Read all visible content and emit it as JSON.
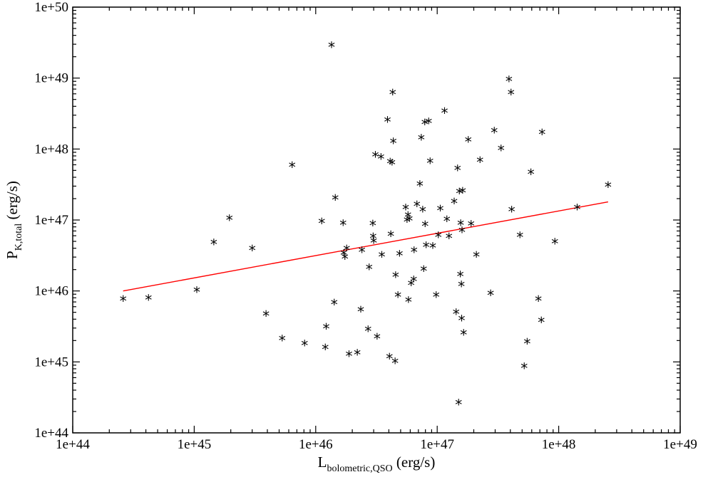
{
  "chart_data": {
    "type": "scatter",
    "title": "",
    "xlabel": {
      "main": "L",
      "sub": "bolometric,QSO",
      "unit": " (erg/s)"
    },
    "ylabel": {
      "main": "P",
      "sub": "K,total",
      "unit": " (erg/s)"
    },
    "xscale": "log",
    "yscale": "log",
    "xlim": [
      1e+44,
      1e+49
    ],
    "ylim": [
      1e+44,
      1e+50
    ],
    "xtick_labels": [
      "1e+44",
      "1e+45",
      "1e+46",
      "1e+47",
      "1e+48",
      "1e+49"
    ],
    "ytick_labels": [
      "1e+44",
      "1e+45",
      "1e+46",
      "1e+47",
      "1e+48",
      "1e+49",
      "1e+50"
    ],
    "grid": false,
    "marker": "*",
    "marker_color": "#000000",
    "fit_line_color": "#ff0000",
    "points": [
      [
        2.6e+44,
        7.2e+45
      ],
      [
        4.2e+44,
        7.4e+45
      ],
      [
        1.05e+45,
        9.6e+45
      ],
      [
        1.45e+45,
        4.5e+46
      ],
      [
        1.95e+45,
        9.9e+46
      ],
      [
        3e+45,
        3.7e+46
      ],
      [
        3.9e+45,
        4.4e+45
      ],
      [
        5.3e+45,
        2e+45
      ],
      [
        6.4e+45,
        5.5e+47
      ],
      [
        8.1e+45,
        1.7e+45
      ],
      [
        1.12e+46,
        8.9e+46
      ],
      [
        1.2e+46,
        1.5e+45
      ],
      [
        1.22e+46,
        2.9e+45
      ],
      [
        1.35e+46,
        2.7e+49
      ],
      [
        1.42e+46,
        6.4e+45
      ],
      [
        1.45e+46,
        1.9e+47
      ],
      [
        1.68e+46,
        8.4e+46
      ],
      [
        1.7e+46,
        3.2e+46
      ],
      [
        1.74e+46,
        2.8e+46
      ],
      [
        1.8e+46,
        3.7e+46
      ],
      [
        1.88e+46,
        1.2e+45
      ],
      [
        2.2e+46,
        1.25e+45
      ],
      [
        2.35e+46,
        5.1e+45
      ],
      [
        2.4e+46,
        3.5e+46
      ],
      [
        2.7e+46,
        2.7e+45
      ],
      [
        2.75e+46,
        2e+46
      ],
      [
        2.95e+46,
        8.3e+46
      ],
      [
        2.97e+46,
        5.5e+46
      ],
      [
        3e+46,
        4.7e+46
      ],
      [
        3.1e+46,
        7.7e+47
      ],
      [
        3.2e+46,
        2.1e+45
      ],
      [
        3.45e+46,
        7.2e+47
      ],
      [
        3.5e+46,
        3e+46
      ],
      [
        3.9e+46,
        2.4e+48
      ],
      [
        4.05e+46,
        1.1e+45
      ],
      [
        4.1e+46,
        6.2e+47
      ],
      [
        4.15e+46,
        5.9e+46
      ],
      [
        4.25e+46,
        6e+47
      ],
      [
        4.3e+46,
        5.8e+48
      ],
      [
        4.35e+46,
        1.2e+48
      ],
      [
        4.5e+46,
        9.5e+44
      ],
      [
        4.55e+46,
        1.55e+46
      ],
      [
        4.75e+46,
        8.2e+45
      ],
      [
        4.9e+46,
        3.1e+46
      ],
      [
        5.5e+46,
        1.4e+47
      ],
      [
        5.65e+46,
        9.3e+46
      ],
      [
        5.75e+46,
        1.1e+47
      ],
      [
        5.8e+46,
        6.9e+45
      ],
      [
        5.9e+46,
        9.7e+46
      ],
      [
        6.1e+46,
        1.2e+46
      ],
      [
        6.4e+46,
        1.35e+46
      ],
      [
        6.45e+46,
        3.5e+46
      ],
      [
        6.8e+46,
        1.55e+47
      ],
      [
        7.2e+46,
        3e+47
      ],
      [
        7.4e+46,
        1.35e+48
      ],
      [
        7.6e+46,
        1.3e+47
      ],
      [
        7.75e+46,
        1.9e+46
      ],
      [
        7.9e+46,
        2.2e+48
      ],
      [
        7.95e+46,
        8.1e+46
      ],
      [
        8.1e+46,
        4.1e+46
      ],
      [
        8.5e+46,
        2.3e+48
      ],
      [
        8.75e+46,
        6.3e+47
      ],
      [
        9.2e+46,
        4e+46
      ],
      [
        9.8e+46,
        8.2e+45
      ],
      [
        1.02e+47,
        5.7e+46
      ],
      [
        1.06e+47,
        1.35e+47
      ],
      [
        1.15e+47,
        3.2e+48
      ],
      [
        1.2e+47,
        9.6e+46
      ],
      [
        1.25e+47,
        5.5e+46
      ],
      [
        1.38e+47,
        1.7e+47
      ],
      [
        1.43e+47,
        4.7e+45
      ],
      [
        1.47e+47,
        5e+47
      ],
      [
        1.5e+47,
        2.5e+44
      ],
      [
        1.52e+47,
        2.35e+47
      ],
      [
        1.55e+47,
        1.6e+46
      ],
      [
        1.56e+47,
        8.4e+46
      ],
      [
        1.58e+47,
        1.15e+46
      ],
      [
        1.59e+47,
        3.8e+45
      ],
      [
        1.6e+47,
        6.7e+46
      ],
      [
        1.62e+47,
        2.4e+47
      ],
      [
        1.65e+47,
        2.4e+45
      ],
      [
        1.8e+47,
        1.25e+48
      ],
      [
        1.9e+47,
        8.2e+46
      ],
      [
        2.1e+47,
        3e+46
      ],
      [
        2.25e+47,
        6.5e+47
      ],
      [
        2.75e+47,
        8.6e+45
      ],
      [
        2.95e+47,
        1.7e+48
      ],
      [
        3.35e+47,
        9.5e+47
      ],
      [
        3.9e+47,
        8.9e+48
      ],
      [
        4.05e+47,
        5.8e+48
      ],
      [
        4.1e+47,
        1.3e+47
      ],
      [
        4.8e+47,
        5.7e+46
      ],
      [
        5.2e+47,
        8.1e+44
      ],
      [
        5.5e+47,
        1.8e+45
      ],
      [
        5.9e+47,
        4.4e+47
      ],
      [
        6.8e+47,
        7.2e+45
      ],
      [
        7.2e+47,
        3.6e+45
      ],
      [
        7.3e+47,
        1.6e+48
      ],
      [
        9.3e+47,
        4.6e+46
      ],
      [
        1.42e+48,
        1.4e+47
      ],
      [
        2.55e+48,
        2.9e+47
      ]
    ],
    "fit_line": {
      "x": [
        2.6e+44,
        2.55e+48
      ],
      "y": [
        1e+46,
        1.8e+47
      ]
    }
  }
}
